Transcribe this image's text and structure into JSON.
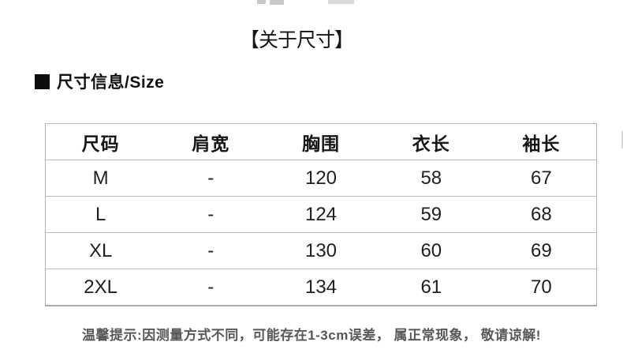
{
  "title": {
    "text": "【关于尺寸】"
  },
  "section_header": {
    "label": "尺寸信息/Size"
  },
  "size_table": {
    "columns": [
      "尺码",
      "肩宽",
      "胸围",
      "衣长",
      "袖长"
    ],
    "rows": [
      {
        "size": "M",
        "shoulder": "-",
        "bust": "120",
        "length": "58",
        "sleeve": "67"
      },
      {
        "size": "L",
        "shoulder": "-",
        "bust": "124",
        "length": "59",
        "sleeve": "68"
      },
      {
        "size": "XL",
        "shoulder": "-",
        "bust": "130",
        "length": "60",
        "sleeve": "69"
      },
      {
        "size": "2XL",
        "shoulder": "-",
        "bust": "134",
        "length": "61",
        "sleeve": "70"
      }
    ]
  },
  "footer_note": {
    "text": "温馨提示:因测量方式不同，可能存在1-3cm误差， 属正常现象， 敬请谅解!"
  },
  "colors": {
    "background": "#ffffff",
    "text": "#1d1d1d",
    "table_border": "#b3b3b3",
    "row_separator": "#bdbdbd",
    "note_text": "#585858",
    "section_bullet": "#0d0d0d"
  }
}
